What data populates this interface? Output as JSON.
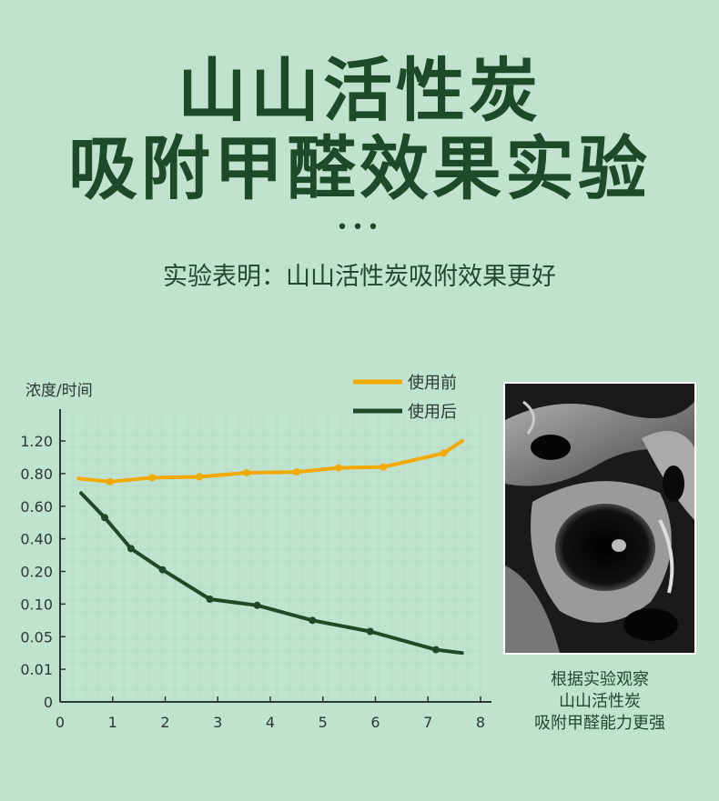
{
  "title_line1": "山山活性炭",
  "title_line2": "吸附甲醛效果实验",
  "dots": "•••",
  "subtitle": "实验表明：山山活性炭吸附效果更好",
  "caption": [
    "根据实验观察",
    "山山活性炭",
    "吸附甲醛能力更强"
  ],
  "colors": {
    "before": "#f2a900",
    "after": "#1e4a28",
    "grid": "#a9d6bd",
    "axis": "#2b3a30"
  },
  "chart_data": {
    "type": "line",
    "ylabel": "浓度/时间",
    "xlabel": "",
    "x_ticks": [
      "0",
      "1",
      "2",
      "3",
      "4",
      "5",
      "6",
      "7",
      "8"
    ],
    "y_ticks": [
      "0",
      "0.01",
      "0.05",
      "0.10",
      "0.20",
      "0.40",
      "0.60",
      "0.80",
      "1.20"
    ],
    "legend_position": "top-right",
    "series": [
      {
        "name": "使用前",
        "color": "#f2a900",
        "points": [
          [
            0.35,
            0.77
          ],
          [
            0.95,
            0.75
          ],
          [
            1.75,
            0.775
          ],
          [
            2.65,
            0.78
          ],
          [
            3.55,
            0.81
          ],
          [
            4.5,
            0.82
          ],
          [
            5.3,
            0.87
          ],
          [
            6.15,
            0.88
          ],
          [
            7.3,
            1.05
          ],
          [
            7.65,
            1.2
          ]
        ]
      },
      {
        "name": "使用后",
        "color": "#1e4a28",
        "points": [
          [
            0.4,
            0.68
          ],
          [
            0.85,
            0.53
          ],
          [
            1.35,
            0.34
          ],
          [
            1.95,
            0.21
          ],
          [
            2.85,
            0.115
          ],
          [
            3.75,
            0.098
          ],
          [
            4.8,
            0.075
          ],
          [
            5.9,
            0.058
          ],
          [
            7.15,
            0.034
          ],
          [
            7.65,
            0.03
          ]
        ]
      }
    ]
  }
}
